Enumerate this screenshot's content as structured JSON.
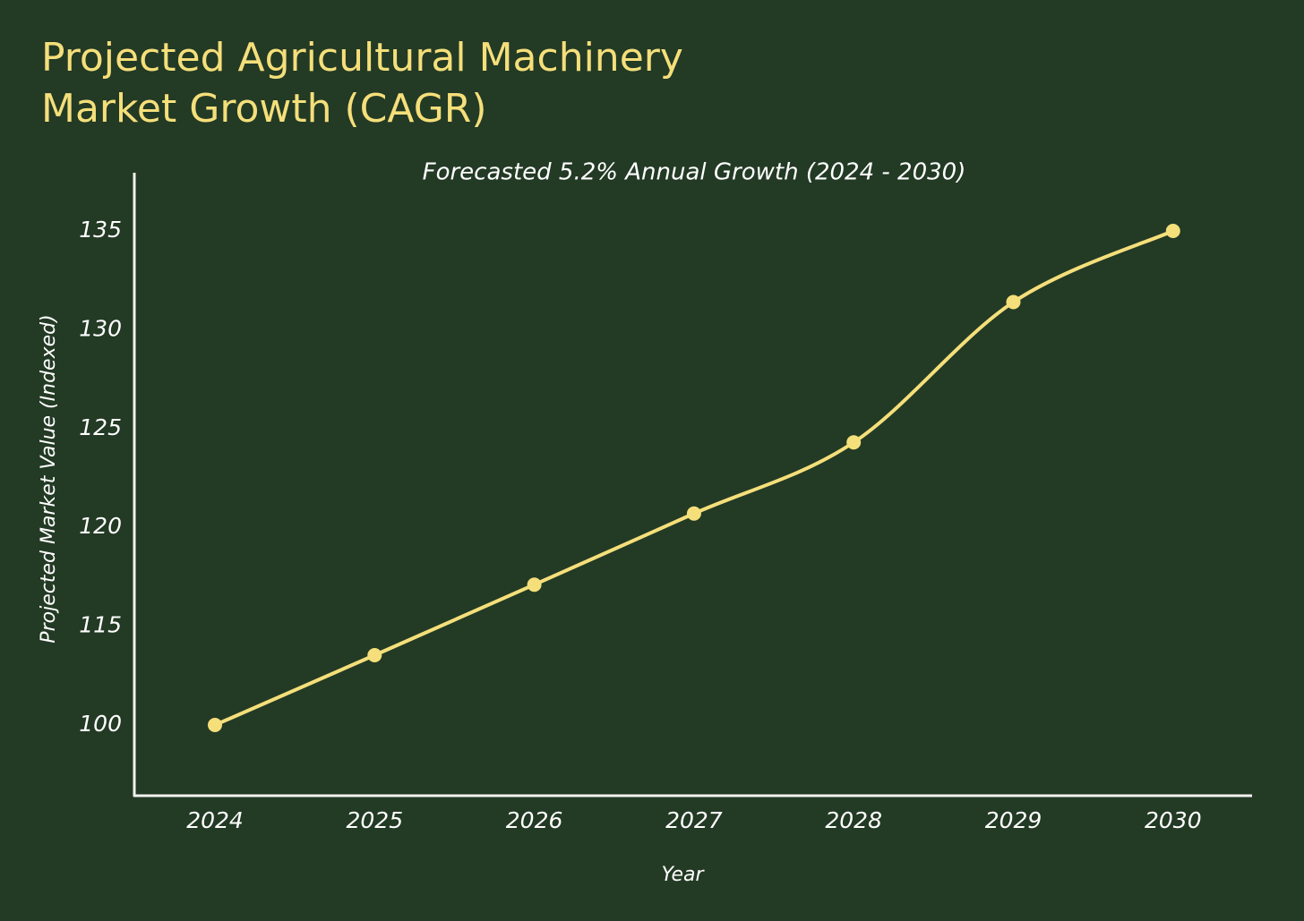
{
  "chart_data": {
    "type": "line",
    "title": "Projected Agricultural Machinery Market Growth (CAGR)",
    "subtitle": "Forecasted 5.2% Annual Growth (2024 - 2030)",
    "x_label": "Year",
    "y_label": "Projected Market Value (Indexed)",
    "categories": [
      "2024",
      "2025",
      "2026",
      "2027",
      "2028",
      "2029",
      "2030"
    ],
    "series": [
      {
        "name": "Projected Market Value",
        "color": "#f5df7a",
        "values": [
          100,
          110.6,
          117.1,
          120.7,
          124.3,
          131.4,
          135
        ]
      }
    ],
    "ylim": [
      97,
      138
    ],
    "yticks": [
      100,
      115,
      120,
      125,
      130,
      135
    ],
    "grid": false
  }
}
